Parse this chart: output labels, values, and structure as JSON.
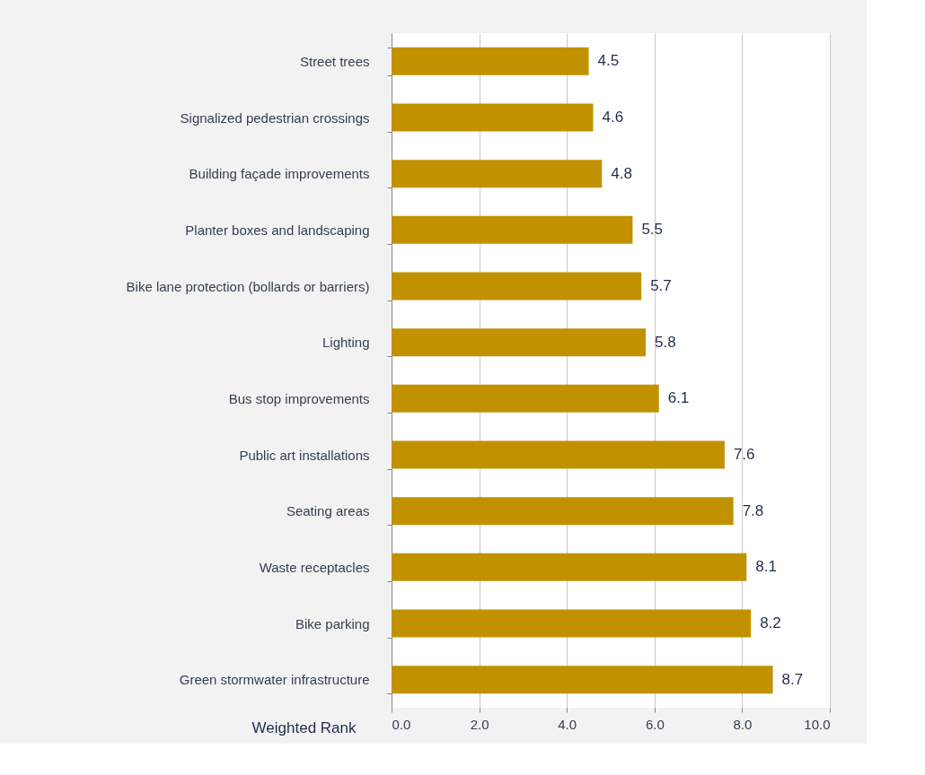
{
  "chart_data": {
    "type": "bar",
    "orientation": "horizontal",
    "xlabel": "Weighted Rank",
    "categories": [
      "Street trees",
      "Signalized pedestrian crossings",
      "Building façade improvements",
      "Planter boxes and landscaping",
      "Bike lane protection (bollards or barriers)",
      "Lighting",
      "Bus stop improvements",
      "Public art installations",
      "Seating areas",
      "Waste receptacles",
      "Bike parking",
      "Green stormwater infrastructure"
    ],
    "values": [
      4.5,
      4.6,
      4.8,
      5.5,
      5.7,
      5.8,
      6.1,
      7.6,
      7.8,
      8.1,
      8.2,
      8.7
    ],
    "color": "#c29100",
    "xlim": [
      0,
      10
    ],
    "xticks": [
      {
        "value": 0,
        "label": "0.0"
      },
      {
        "value": 2,
        "label": "2.0"
      },
      {
        "value": 4,
        "label": "4.0"
      },
      {
        "value": 6,
        "label": "6.0"
      },
      {
        "value": 8,
        "label": "8.0"
      },
      {
        "value": 10,
        "label": "10.0"
      }
    ],
    "data_labels": true,
    "grid": "x"
  }
}
